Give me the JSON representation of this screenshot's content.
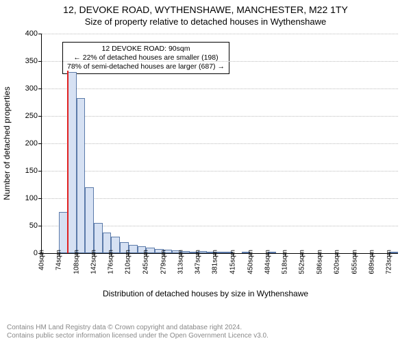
{
  "title_main": "12, DEVOKE ROAD, WYTHENSHAWE, MANCHESTER, M22 1TY",
  "title_sub": "Size of property relative to detached houses in Wythenshawe",
  "ylabel": "Number of detached properties",
  "xlabel": "Distribution of detached houses by size in Wythenshawe",
  "footer_line1": "Contains HM Land Registry data © Crown copyright and database right 2024.",
  "footer_line2": "Contains public sector information licensed under the Open Government Licence v3.0.",
  "chart": {
    "type": "histogram",
    "ymax": 400,
    "ytick_step": 50,
    "bar_fill": "#d6e1f3",
    "bar_border": "#5b7aa9",
    "grid_color": "#bbbbbb",
    "background": "#ffffff",
    "highlight_color": "#e02020",
    "highlight_value": 90,
    "xtick_labels": [
      "40sqm",
      "74sqm",
      "108sqm",
      "142sqm",
      "176sqm",
      "210sqm",
      "245sqm",
      "279sqm",
      "313sqm",
      "347sqm",
      "381sqm",
      "415sqm",
      "450sqm",
      "484sqm",
      "518sqm",
      "552sqm",
      "586sqm",
      "620sqm",
      "655sqm",
      "689sqm",
      "723sqm"
    ],
    "xmin": 40,
    "xmax": 740,
    "bin_categories": [
      "40",
      "57",
      "74",
      "91",
      "108",
      "125",
      "142",
      "159",
      "176",
      "193",
      "210",
      "227",
      "245",
      "262",
      "279",
      "296",
      "313",
      "330",
      "347",
      "364",
      "381",
      "398",
      "415",
      "432",
      "450",
      "467",
      "484",
      "501",
      "518",
      "535",
      "552",
      "569",
      "586",
      "603",
      "620",
      "637",
      "655",
      "672",
      "689",
      "706",
      "723"
    ],
    "values": [
      0,
      0,
      75,
      330,
      283,
      120,
      55,
      38,
      30,
      20,
      15,
      13,
      10,
      8,
      6,
      5,
      4,
      3,
      4,
      2,
      3,
      2,
      0,
      2,
      0,
      0,
      2,
      0,
      0,
      0,
      0,
      0,
      0,
      0,
      0,
      0,
      0,
      0,
      0,
      0,
      1
    ]
  },
  "annotation": {
    "line1": "12 DEVOKE ROAD: 90sqm",
    "line2": "← 22% of detached houses are smaller (198)",
    "line3": "78% of semi-detached houses are larger (687) →"
  },
  "fonts": {
    "title_size_pt": 14,
    "subtitle_size_pt": 13,
    "axis_label_size_pt": 12,
    "tick_size_pt": 11,
    "annotation_size_pt": 10.5,
    "footer_size_pt": 10
  }
}
